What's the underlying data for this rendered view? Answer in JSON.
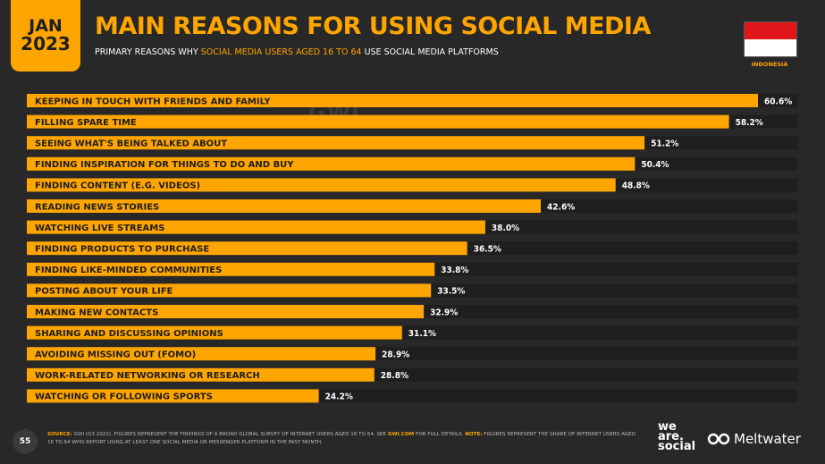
{
  "header": {
    "date_month": "JAN",
    "date_year": "2023",
    "title": "MAIN REASONS FOR USING SOCIAL MEDIA",
    "subtitle_pre": "PRIMARY REASONS WHY ",
    "subtitle_highlight": "SOCIAL MEDIA USERS AGED 16 TO 64",
    "subtitle_post": " USE SOCIAL MEDIA PLATFORMS",
    "country_label": "INDONESIA",
    "watermark": "GWI."
  },
  "colors": {
    "accent": "#ffa500",
    "background": "#282828",
    "flag_red": "#e1161b",
    "flag_white": "#ffffff"
  },
  "chart_data": {
    "type": "bar",
    "orientation": "horizontal",
    "categories": [
      "KEEPING IN TOUCH WITH FRIENDS AND FAMILY",
      "FILLING SPARE TIME",
      "SEEING WHAT'S BEING TALKED ABOUT",
      "FINDING INSPIRATION FOR THINGS TO DO AND BUY",
      "FINDING CONTENT (E.G. VIDEOS)",
      "READING NEWS STORIES",
      "WATCHING LIVE STREAMS",
      "FINDING PRODUCTS TO PURCHASE",
      "FINDING LIKE-MINDED COMMUNITIES",
      "POSTING ABOUT YOUR LIFE",
      "MAKING NEW CONTACTS",
      "SHARING AND DISCUSSING OPINIONS",
      "AVOIDING MISSING OUT (FOMO)",
      "WORK-RELATED NETWORKING OR RESEARCH",
      "WATCHING OR FOLLOWING SPORTS"
    ],
    "values": [
      60.6,
      58.2,
      51.2,
      50.4,
      48.8,
      42.6,
      38.0,
      36.5,
      33.8,
      33.5,
      32.9,
      31.1,
      28.9,
      28.8,
      24.2
    ],
    "labels": [
      "60.6%",
      "58.2%",
      "51.2%",
      "50.4%",
      "48.8%",
      "42.6%",
      "38.0%",
      "36.5%",
      "33.8%",
      "33.5%",
      "32.9%",
      "31.1%",
      "28.9%",
      "28.8%",
      "24.2%"
    ],
    "xlim": [
      0,
      60.6
    ],
    "grid": false,
    "title": "",
    "xlabel": "",
    "ylabel": ""
  },
  "footer": {
    "page_number": "55",
    "source_label": "SOURCE:",
    "source_text_1": " GWI (Q3 2022). FIGURES REPRESENT THE FINDINGS OF A BROAD GLOBAL SURVEY OF INTERNET USERS AGED 16 TO 64. SEE ",
    "source_link": "GWI.COM",
    "source_text_2": " FOR FULL DETAILS. ",
    "note_label": "NOTE:",
    "note_text": " FIGURES REPRESENT THE SHARE OF INTERNET USERS AGED 16 TO 64 WHO REPORT USING AT LEAST ONE SOCIAL MEDIA OR MESSENGER PLATFORM IN THE PAST MONTH.",
    "logo_we": "we",
    "logo_are": "are.",
    "logo_social": "social",
    "logo_meltwater": "Meltwater"
  }
}
